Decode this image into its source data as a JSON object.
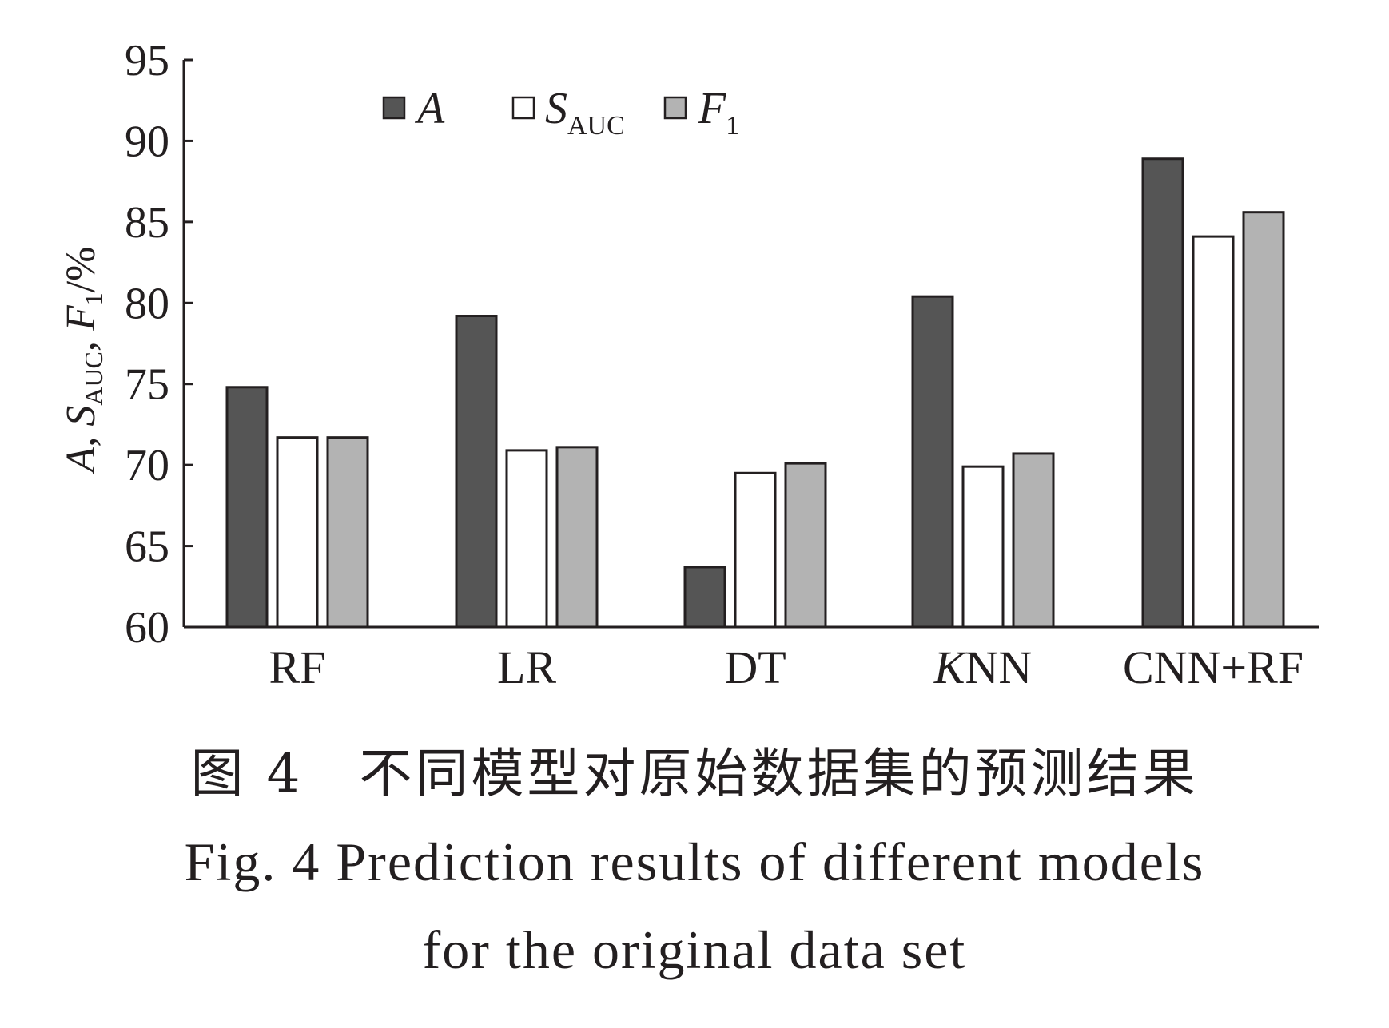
{
  "chart_data": {
    "type": "bar",
    "categories": [
      "RF",
      "LR",
      "DT",
      "KNN",
      "CNN+RF"
    ],
    "series": [
      {
        "name": "A",
        "values": [
          74.8,
          79.2,
          63.7,
          80.4,
          88.9
        ],
        "color": "#555555"
      },
      {
        "name": "S_AUC",
        "values": [
          71.7,
          70.9,
          69.5,
          69.9,
          84.1
        ],
        "color": "#ffffff"
      },
      {
        "name": "F_1",
        "values": [
          71.7,
          71.1,
          70.1,
          70.7,
          85.6
        ],
        "color": "#b3b3b3"
      }
    ],
    "ylabel": "A, S_AUC, F_1/%",
    "ylim": [
      60,
      95
    ],
    "yticks": [
      60,
      65,
      70,
      75,
      80,
      85,
      90,
      95
    ],
    "grid": false,
    "legend_position": "top-left"
  },
  "legend": {
    "a_main": "A",
    "s_main": "S",
    "s_sub": "AUC",
    "f_main": "F",
    "f_sub": "1"
  },
  "ylabel_parts": {
    "a": "A",
    "sep1": ", ",
    "s": "S",
    "s_sub": "AUC",
    "sep2": ", ",
    "f": "F",
    "f_sub": "1",
    "unit": "/%"
  },
  "category_labels": {
    "knn_prefix": "K",
    "knn_rest": "NN"
  },
  "caption": {
    "zh": "图 4　不同模型对原始数据集的预测结果",
    "en_line1": "Fig. 4   Prediction results of different models",
    "en_line2": "for the original data set"
  }
}
